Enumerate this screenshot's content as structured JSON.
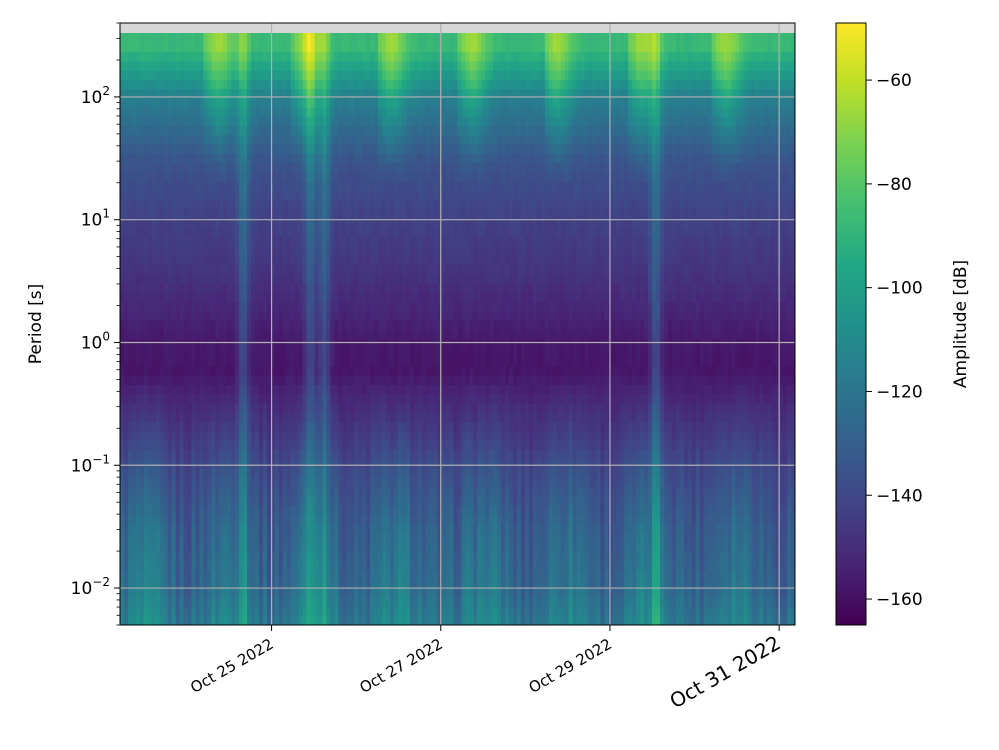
{
  "chart_data": {
    "type": "heatmap",
    "title": "",
    "xlabel": "",
    "ylabel": "Period [s]",
    "x_axis": {
      "type": "date",
      "range": [
        "2022-10-23T05:00",
        "2022-10-31T04:30"
      ],
      "tick_values": [
        "2022-10-25",
        "2022-10-27",
        "2022-10-29",
        "2022-10-31"
      ],
      "tick_labels": [
        "Oct 25 2022",
        "Oct 27 2022",
        "Oct 29 2022",
        "Oct 31 2022"
      ]
    },
    "y_axis": {
      "scale": "log",
      "range": [
        0.005,
        400
      ],
      "tick_values": [
        0.01,
        0.1,
        1,
        10,
        100
      ],
      "tick_labels": [
        [
          "10",
          "−2"
        ],
        [
          "10",
          "−1"
        ],
        [
          "10",
          "0"
        ],
        [
          "10",
          "1"
        ],
        [
          "10",
          "2"
        ]
      ]
    },
    "grid": true,
    "colorbar": {
      "label": "Amplitude [dB]",
      "range": [
        -165,
        -49
      ],
      "tick_values": [
        -60,
        -80,
        -100,
        -120,
        -140,
        -160
      ],
      "tick_labels": [
        "−60",
        "−80",
        "−100",
        "−120",
        "−140",
        "−160"
      ],
      "colormap": "viridis"
    },
    "amplitude_profile_db": {
      "period_s": [
        0.005,
        0.01,
        0.03,
        0.1,
        0.3,
        0.6,
        1.0,
        2.0,
        5.0,
        10,
        30,
        100,
        250
      ],
      "amplitude_db": [
        -115,
        -123,
        -128,
        -138,
        -150,
        -158,
        -157,
        -152,
        -146,
        -143,
        -135,
        -115,
        -88
      ]
    },
    "events": [
      {
        "time": "2022-10-24T06:00",
        "type": "long_period_burst"
      },
      {
        "time": "2022-10-25T07:00",
        "type": "long_period_burst"
      },
      {
        "time": "2022-10-26T07:00",
        "type": "long_period_burst"
      },
      {
        "time": "2022-10-27T06:00",
        "type": "long_period_burst"
      },
      {
        "time": "2022-10-28T06:00",
        "type": "long_period_burst"
      },
      {
        "time": "2022-10-29T06:00",
        "type": "long_period_burst"
      },
      {
        "time": "2022-10-30T06:00",
        "type": "long_period_burst"
      },
      {
        "time": "2022-10-24T16:00",
        "type": "broadband_transient"
      },
      {
        "time": "2022-10-25T11:00",
        "type": "broadband_transient"
      },
      {
        "time": "2022-10-25T15:00",
        "type": "broadband_transient"
      },
      {
        "time": "2022-10-29T13:00",
        "type": "broadband_transient"
      }
    ]
  }
}
